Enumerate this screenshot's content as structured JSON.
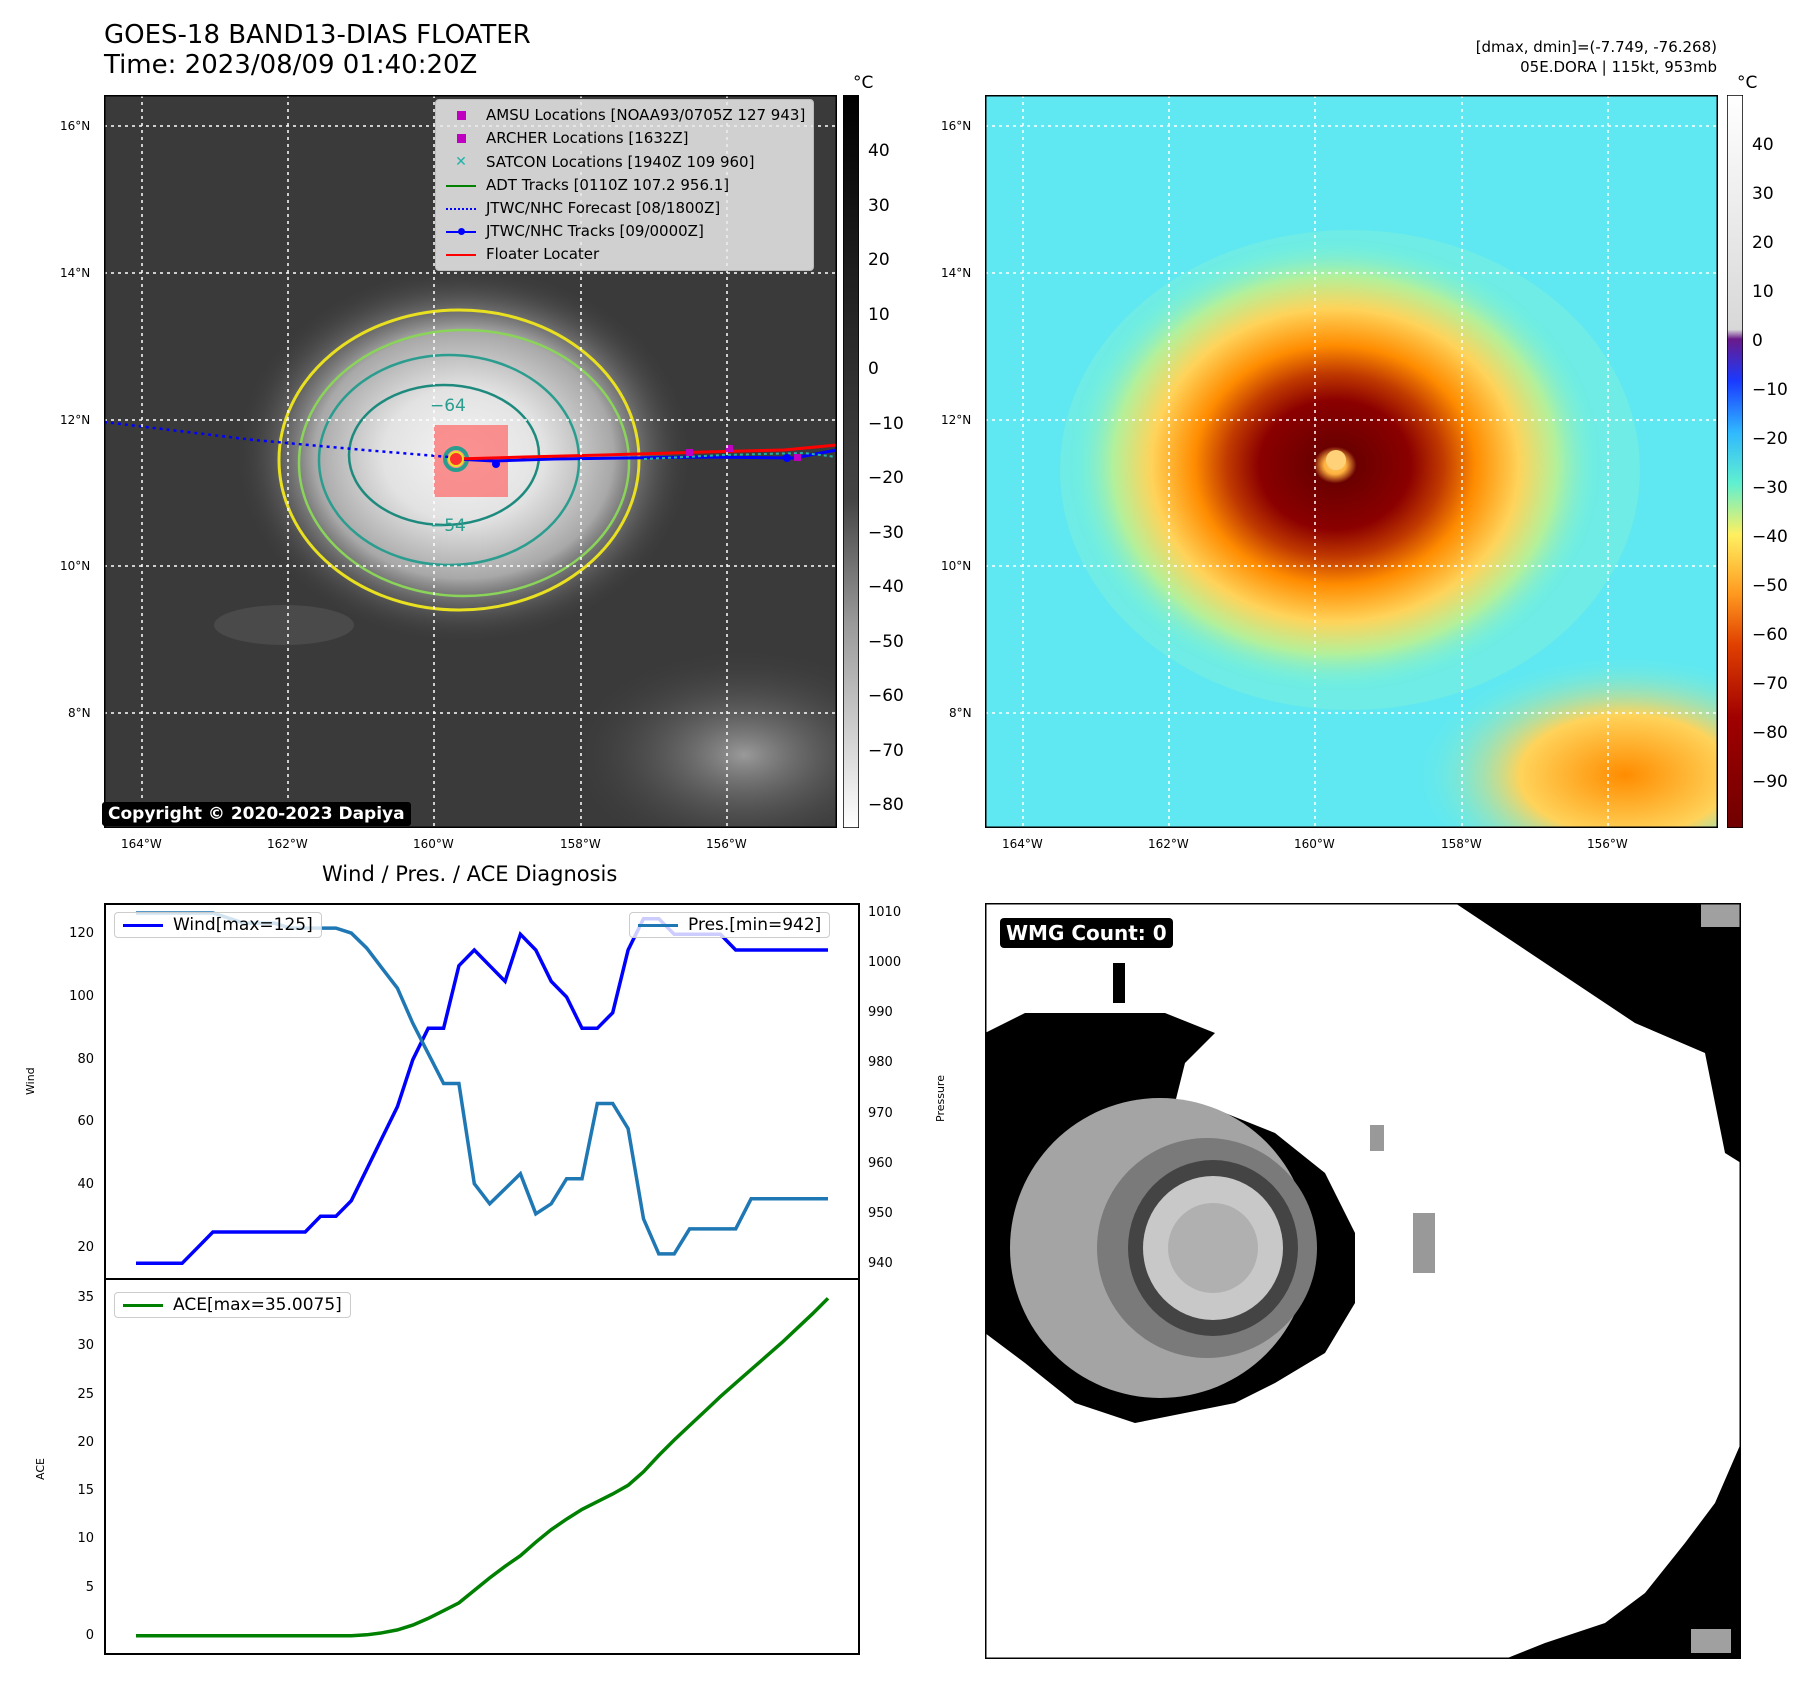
{
  "header": {
    "title_line1": "GOES-18 BAND13-DIAS FLOATER",
    "title_line2": "Time: 2023/08/09 01:40:20Z",
    "right_line1": "[dmax, dmin]=(-7.749, -76.268)",
    "right_line2": "05E.DORA | 115kt, 953mb"
  },
  "ir_panel": {
    "lat_labels": [
      "16°N",
      "14°N",
      "12°N",
      "10°N",
      "8°N"
    ],
    "lon_labels": [
      "164°W",
      "162°W",
      "160°W",
      "158°W",
      "156°W"
    ],
    "contour_labels": [
      "−64",
      "−54"
    ],
    "copyright": "Copyright © 2020-2023 Dapiya",
    "legend": [
      {
        "label": "AMSU Locations [NOAA93/0705Z 127 943]",
        "symbol": "square",
        "color": "#c000c0"
      },
      {
        "label": "ARCHER Locations [1632Z]",
        "symbol": "square",
        "color": "#c000c0"
      },
      {
        "label": "SATCON Locations [1940Z 109 960]",
        "symbol": "x",
        "color": "#20b2aa"
      },
      {
        "label": "ADT Tracks [0110Z 107.2 956.1]",
        "symbol": "line",
        "color": "#008000"
      },
      {
        "label": "JTWC/NHC Forecast [08/1800Z]",
        "symbol": "dotted",
        "color": "#0000ff"
      },
      {
        "label": "JTWC/NHC Tracks [09/0000Z]",
        "symbol": "dotline",
        "color": "#0000ff"
      },
      {
        "label": "Floater Locater",
        "symbol": "line",
        "color": "#ff0000"
      }
    ],
    "colorbar": {
      "unit": "°C",
      "ticks": [
        "40",
        "30",
        "20",
        "10",
        "0",
        "−10",
        "−20",
        "−30",
        "−40",
        "−50",
        "−60",
        "−70",
        "−80"
      ]
    }
  },
  "color_panel": {
    "lat_labels": [
      "16°N",
      "14°N",
      "12°N",
      "10°N",
      "8°N"
    ],
    "lon_labels": [
      "164°W",
      "162°W",
      "160°W",
      "158°W",
      "156°W"
    ],
    "colorbar": {
      "unit": "°C",
      "ticks": [
        "40",
        "30",
        "20",
        "10",
        "0",
        "−10",
        "−20",
        "−30",
        "−40",
        "−50",
        "−60",
        "−70",
        "−80",
        "−90"
      ]
    }
  },
  "wmg_panel": {
    "label": "WMG Count: 0"
  },
  "chart_data": [
    {
      "type": "line",
      "title": "Wind / Pres. / ACE Diagnosis",
      "ylabel": "Wind",
      "y2label": "Pressure",
      "ylim": [
        10,
        130
      ],
      "y2lim": [
        937,
        1012
      ],
      "yticks": [
        20,
        40,
        60,
        80,
        100,
        120
      ],
      "y2ticks": [
        940,
        950,
        960,
        970,
        980,
        990,
        1000,
        1010
      ],
      "series": [
        {
          "name": "Wind[max=125]",
          "axis": "left",
          "color": "#0000ff",
          "values": [
            15,
            15,
            15,
            15,
            20,
            25,
            25,
            25,
            25,
            25,
            25,
            25,
            30,
            30,
            35,
            45,
            55,
            65,
            80,
            90,
            90,
            110,
            115,
            110,
            105,
            120,
            115,
            105,
            100,
            90,
            90,
            95,
            115,
            125,
            125,
            120,
            120,
            120,
            120,
            115,
            115,
            115,
            115,
            115,
            115,
            115
          ]
        },
        {
          "name": "Pres.[min=942]",
          "axis": "right",
          "color": "#1f77b4",
          "values": [
            1010,
            1010,
            1010,
            1010,
            1010,
            1010,
            1009,
            1008,
            1008,
            1008,
            1007,
            1007,
            1007,
            1007,
            1006,
            1003,
            999,
            995,
            988,
            982,
            976,
            976,
            956,
            952,
            955,
            958,
            950,
            952,
            957,
            957,
            972,
            972,
            967,
            949,
            942,
            942,
            947,
            947,
            947,
            947,
            953,
            953,
            953,
            953,
            953,
            953
          ]
        }
      ]
    },
    {
      "type": "line",
      "ylabel": "ACE",
      "ylim": [
        -2,
        37
      ],
      "yticks": [
        0,
        5,
        10,
        15,
        20,
        25,
        30,
        35
      ],
      "series": [
        {
          "name": "ACE[max=35.0075]",
          "color": "#008000",
          "values": [
            0,
            0,
            0,
            0,
            0,
            0,
            0,
            0,
            0,
            0,
            0,
            0,
            0,
            0,
            0,
            0.1,
            0.3,
            0.6,
            1.1,
            1.8,
            2.6,
            3.4,
            4.7,
            6.0,
            7.2,
            8.3,
            9.7,
            11.0,
            12.1,
            13.1,
            13.9,
            14.7,
            15.6,
            17.0,
            18.7,
            20.3,
            21.8,
            23.3,
            24.8,
            26.2,
            27.6,
            29.0,
            30.4,
            31.9,
            33.4,
            35.0
          ]
        }
      ]
    }
  ]
}
